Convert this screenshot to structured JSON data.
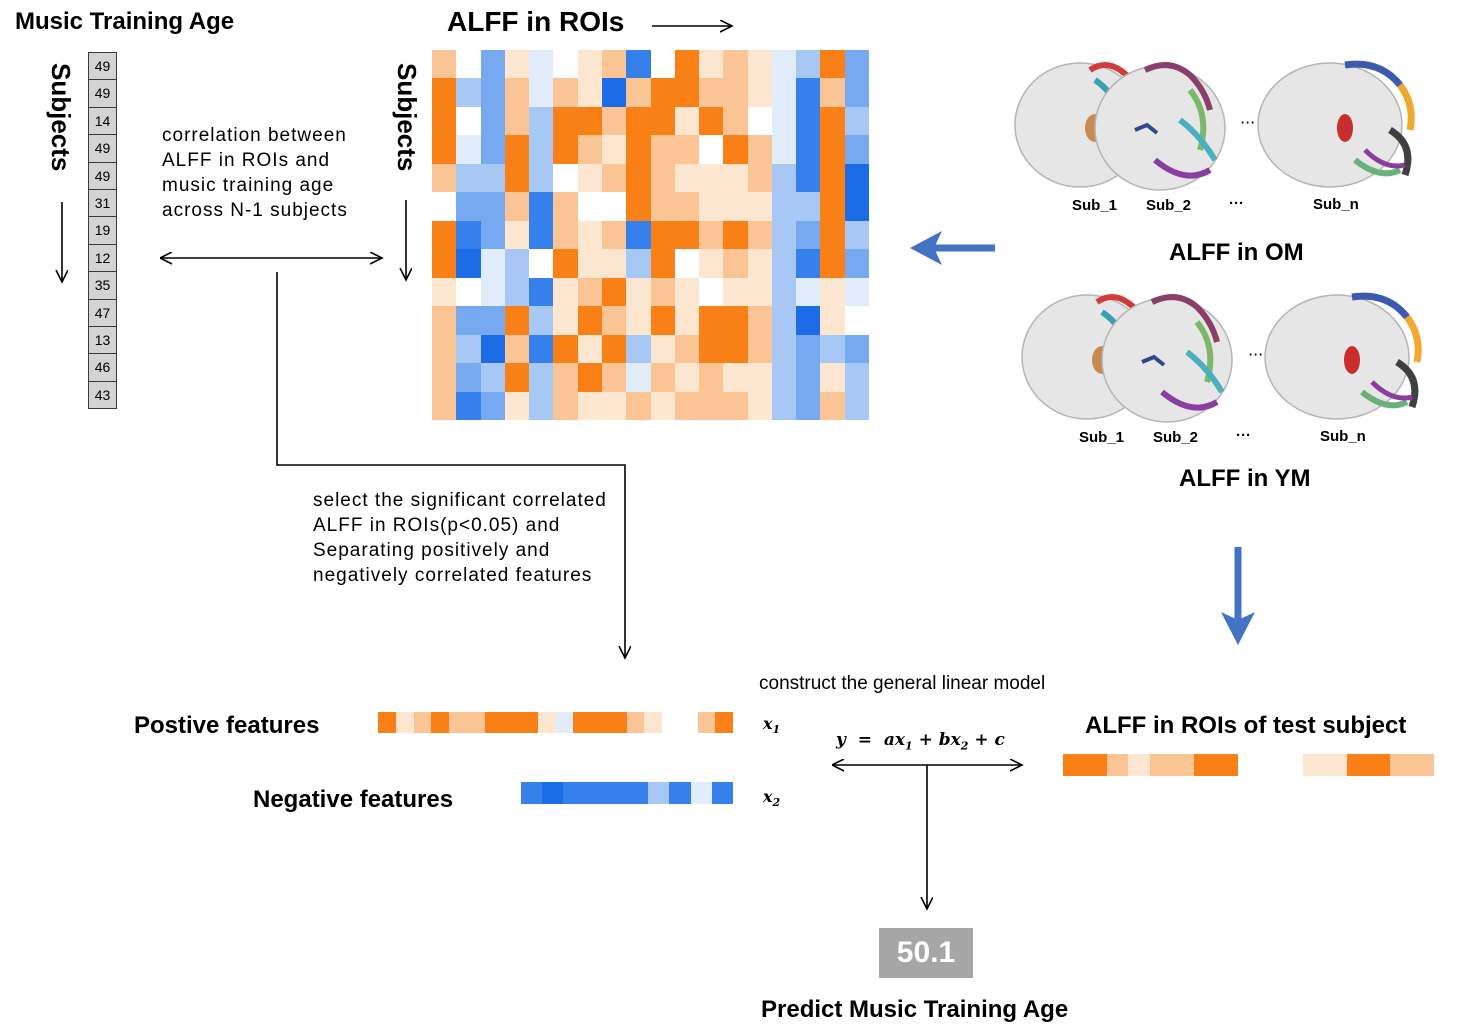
{
  "titles": {
    "music_training_age": "Music Training Age",
    "alff_in_rois": "ALFF in ROIs",
    "subjects_left": "Subjects",
    "subjects_right": "Subjects",
    "alff_om": "ALFF in OM",
    "alff_ym": "ALFF in YM",
    "positive_features": "Postive features",
    "negative_features": "Negative features",
    "test_subject": "ALFF in ROIs of test subject",
    "predict": "Predict Music Training Age"
  },
  "notes": {
    "correlation": [
      "correlation between",
      "ALFF in ROIs and",
      "music training age",
      "across N-1 subjects"
    ],
    "select": [
      "select the significant correlated",
      "ALFF in ROIs(p<0.05) and",
      "Separating positively and",
      "negatively correlated features"
    ],
    "construct": "construct the general linear model"
  },
  "ages": [
    "49",
    "49",
    "14",
    "49",
    "49",
    "31",
    "19",
    "12",
    "35",
    "47",
    "13",
    "46",
    "43"
  ],
  "om_labels": {
    "sub1": "Sub_1",
    "sub2": "Sub_2",
    "dots": "···",
    "subn": "Sub_n",
    "between": "···"
  },
  "ym_labels": {
    "sub1": "Sub_1",
    "sub2": "Sub_2",
    "dots": "···",
    "subn": "Sub_n",
    "between": "···"
  },
  "formula": {
    "y": "y",
    "eq": "=",
    "a": "a",
    "b": "b",
    "c": "c",
    "x1": "x",
    "x2": "x",
    "s1": "1",
    "s2": "2",
    "plus": "+"
  },
  "x_labels": {
    "x1": "x",
    "s1": "1",
    "x2": "x",
    "s2": "2"
  },
  "prediction": "50.1",
  "colors": {
    "palette": {
      "O": "#f98016",
      "o": "#f9a356",
      "p": "#fbc494",
      "q": "#fde6cf",
      "w": "#ffffff",
      "b": "#e0ecfa",
      "m": "#a7c7f4",
      "l": "#76a9ef",
      "B": "#3580ea",
      "D": "#1b6ce6"
    },
    "arrow_blue": "#4472c4",
    "pred_box": "#a6a6a6",
    "age_cell": "#d3d3d3"
  },
  "matrix_rows": [
    "pwlqbwqpBwOqpqbmOl",
    "OmlpbpqDpOOppqbBpl",
    "OwlpmOOpOOqOpwbBOm",
    "OblOmOpqOppwOpbBOl",
    "pmmOmwqpOpqqqpmBOD",
    "wllpBpwwOppqqqmmOD",
    "OBlqBpqpBOOpOpmlOm",
    "ODbmwOqqmOwqpqmBOl",
    "qwbmBqpOqpqwqqmbqb",
    "pllOmqOpqOqOOpmDqw",
    "pmDpBOqOmqpOOpmlml",
    "plmOmpOpbpqpqqmlqm",
    "pBlqmpqqpqpppqmlpm"
  ],
  "positive_strip": "OqpOppOOOqbOOOpq_wpO",
  "negative_strip": "BDBBBBmBbB",
  "test_strip": "OOpqppOOw_wqqOOpp"
}
